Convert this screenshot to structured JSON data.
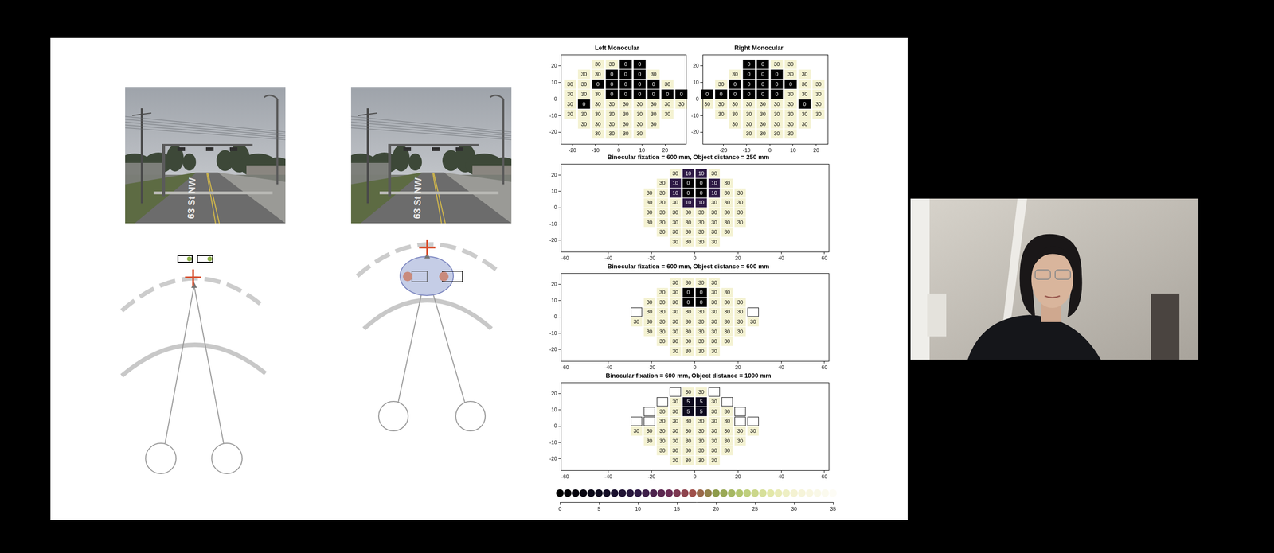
{
  "photos": [
    {
      "road_marking": "63 St NW"
    },
    {
      "road_marking": "63 St NW"
    }
  ],
  "chart_data": [
    {
      "type": "heatmap",
      "title": "Left Monocular",
      "data_labels": true,
      "xlim": [
        -25,
        29
      ],
      "ylim": [
        -27,
        27
      ],
      "xticks": [
        -20,
        -10,
        0,
        10,
        20
      ],
      "yticks": [
        -20,
        -10,
        0,
        10,
        20
      ],
      "cells": [
        {
          "y": 21,
          "x": [
            -9,
            -3,
            3,
            9
          ],
          "values": [
            30,
            30,
            0,
            0
          ]
        },
        {
          "y": 15,
          "x": [
            -15,
            -9,
            -3,
            3,
            9,
            15
          ],
          "values": [
            30,
            30,
            0,
            0,
            0,
            30
          ]
        },
        {
          "y": 9,
          "x": [
            -21,
            -15,
            -9,
            -3,
            3,
            9,
            15,
            21
          ],
          "values": [
            30,
            30,
            0,
            0,
            0,
            0,
            0,
            30
          ]
        },
        {
          "y": 3,
          "x": [
            -21,
            -15,
            -9,
            -3,
            3,
            9,
            15,
            21,
            27
          ],
          "values": [
            30,
            30,
            30,
            0,
            0,
            0,
            0,
            0,
            0
          ]
        },
        {
          "y": -3,
          "x": [
            -21,
            -15,
            -9,
            -3,
            3,
            9,
            15,
            21,
            27
          ],
          "values": [
            30,
            0,
            30,
            30,
            30,
            30,
            30,
            30,
            30
          ]
        },
        {
          "y": -9,
          "x": [
            -21,
            -15,
            -9,
            -3,
            3,
            9,
            15,
            21
          ],
          "values": [
            30,
            30,
            30,
            30,
            30,
            30,
            30,
            30
          ]
        },
        {
          "y": -15,
          "x": [
            -15,
            -9,
            -3,
            3,
            9,
            15
          ],
          "values": [
            30,
            30,
            30,
            30,
            30,
            30
          ]
        },
        {
          "y": -21,
          "x": [
            -9,
            -3,
            3,
            9
          ],
          "values": [
            30,
            30,
            30,
            30
          ]
        }
      ]
    },
    {
      "type": "heatmap",
      "title": "Right Monocular",
      "data_labels": true,
      "xlim": [
        -29,
        25
      ],
      "ylim": [
        -27,
        27
      ],
      "xticks": [
        -20,
        -10,
        0,
        10,
        20
      ],
      "yticks": [
        -20,
        -10,
        0,
        10,
        20
      ],
      "cells": [
        {
          "y": 21,
          "x": [
            -9,
            -3,
            3,
            9
          ],
          "values": [
            0,
            0,
            30,
            30
          ]
        },
        {
          "y": 15,
          "x": [
            -15,
            -9,
            -3,
            3,
            9,
            15
          ],
          "values": [
            30,
            0,
            0,
            0,
            30,
            30
          ]
        },
        {
          "y": 9,
          "x": [
            -21,
            -15,
            -9,
            -3,
            3,
            9,
            15,
            21
          ],
          "values": [
            30,
            0,
            0,
            0,
            0,
            0,
            30,
            30
          ]
        },
        {
          "y": 3,
          "x": [
            -27,
            -21,
            -15,
            -9,
            -3,
            3,
            9,
            15,
            21
          ],
          "values": [
            0,
            0,
            0,
            0,
            0,
            0,
            30,
            30,
            30
          ]
        },
        {
          "y": -3,
          "x": [
            -27,
            -21,
            -15,
            -9,
            -3,
            3,
            9,
            15,
            21
          ],
          "values": [
            30,
            30,
            30,
            30,
            30,
            30,
            30,
            0,
            30
          ]
        },
        {
          "y": -9,
          "x": [
            -21,
            -15,
            -9,
            -3,
            3,
            9,
            15,
            21
          ],
          "values": [
            30,
            30,
            30,
            30,
            30,
            30,
            30,
            30
          ]
        },
        {
          "y": -15,
          "x": [
            -15,
            -9,
            -3,
            3,
            9,
            15
          ],
          "values": [
            30,
            30,
            30,
            30,
            30,
            30
          ]
        },
        {
          "y": -21,
          "x": [
            -9,
            -3,
            3,
            9
          ],
          "values": [
            30,
            30,
            30,
            30
          ]
        }
      ]
    },
    {
      "type": "heatmap",
      "title": "Binocular fixation = 600 mm, Object distance = 250 mm",
      "data_labels": true,
      "xlim": [
        -62,
        62
      ],
      "ylim": [
        -27,
        27
      ],
      "xticks": [
        -60,
        -40,
        -20,
        0,
        20,
        40,
        60
      ],
      "yticks": [
        -20,
        -10,
        0,
        10,
        20
      ],
      "cells": [
        {
          "y": 21,
          "x": [
            -9,
            -3,
            3,
            9
          ],
          "values": [
            30,
            10,
            10,
            30
          ]
        },
        {
          "y": 15,
          "x": [
            -15,
            -9,
            -3,
            3,
            9,
            15
          ],
          "values": [
            30,
            10,
            0,
            0,
            10,
            30
          ]
        },
        {
          "y": 9,
          "x": [
            -21,
            -15,
            -9,
            -3,
            3,
            9,
            15,
            21
          ],
          "values": [
            30,
            30,
            10,
            0,
            0,
            10,
            30,
            30
          ]
        },
        {
          "y": 3,
          "x": [
            -21,
            -15,
            -9,
            -3,
            3,
            9,
            15,
            21
          ],
          "values": [
            30,
            30,
            30,
            10,
            10,
            30,
            30,
            30
          ]
        },
        {
          "y": -3,
          "x": [
            -21,
            -15,
            -9,
            -3,
            3,
            9,
            15,
            21
          ],
          "values": [
            30,
            30,
            30,
            30,
            30,
            30,
            30,
            30
          ]
        },
        {
          "y": -9,
          "x": [
            -21,
            -15,
            -9,
            -3,
            3,
            9,
            15,
            21
          ],
          "values": [
            30,
            30,
            30,
            30,
            30,
            30,
            30,
            30
          ]
        },
        {
          "y": -15,
          "x": [
            -15,
            -9,
            -3,
            3,
            9,
            15
          ],
          "values": [
            30,
            30,
            30,
            30,
            30,
            30
          ]
        },
        {
          "y": -21,
          "x": [
            -9,
            -3,
            3,
            9
          ],
          "values": [
            30,
            30,
            30,
            30
          ]
        }
      ]
    },
    {
      "type": "heatmap",
      "title": "Binocular fixation = 600 mm, Object distance = 600 mm",
      "data_labels": true,
      "xlim": [
        -62,
        62
      ],
      "ylim": [
        -27,
        27
      ],
      "xticks": [
        -60,
        -40,
        -20,
        0,
        20,
        40,
        60
      ],
      "yticks": [
        -20,
        -10,
        0,
        10,
        20
      ],
      "cells": [
        {
          "y": 21,
          "x": [
            -9,
            -3,
            3,
            9
          ],
          "values": [
            30,
            30,
            30,
            30
          ]
        },
        {
          "y": 15,
          "x": [
            -15,
            -9,
            -3,
            3,
            9,
            15
          ],
          "values": [
            30,
            30,
            0,
            0,
            30,
            30
          ]
        },
        {
          "y": 9,
          "x": [
            -21,
            -15,
            -9,
            -3,
            3,
            9,
            15,
            21
          ],
          "values": [
            30,
            30,
            30,
            0,
            0,
            30,
            30,
            30
          ]
        },
        {
          "y": 3,
          "x": [
            -27,
            -21,
            -15,
            -9,
            -3,
            3,
            9,
            15,
            21,
            27
          ],
          "values": [
            null,
            30,
            30,
            30,
            30,
            30,
            30,
            30,
            30,
            null
          ]
        },
        {
          "y": -3,
          "x": [
            -27,
            -21,
            -15,
            -9,
            -3,
            3,
            9,
            15,
            21,
            27
          ],
          "values": [
            30,
            30,
            30,
            30,
            30,
            30,
            30,
            30,
            30,
            30
          ]
        },
        {
          "y": -9,
          "x": [
            -21,
            -15,
            -9,
            -3,
            3,
            9,
            15,
            21
          ],
          "values": [
            30,
            30,
            30,
            30,
            30,
            30,
            30,
            30
          ]
        },
        {
          "y": -15,
          "x": [
            -15,
            -9,
            -3,
            3,
            9,
            15
          ],
          "values": [
            30,
            30,
            30,
            30,
            30,
            30
          ]
        },
        {
          "y": -21,
          "x": [
            -9,
            -3,
            3,
            9
          ],
          "values": [
            30,
            30,
            30,
            30
          ]
        }
      ]
    },
    {
      "type": "heatmap",
      "title": "Binocular fixation = 600 mm, Object distance = 1000 mm",
      "data_labels": true,
      "xlim": [
        -62,
        62
      ],
      "ylim": [
        -27,
        27
      ],
      "xticks": [
        -60,
        -40,
        -20,
        0,
        20,
        40,
        60
      ],
      "yticks": [
        -20,
        -10,
        0,
        10,
        20
      ],
      "cells": [
        {
          "y": 21,
          "x": [
            -9,
            -3,
            3,
            9
          ],
          "values": [
            null,
            30,
            30,
            null
          ]
        },
        {
          "y": 15,
          "x": [
            -15,
            -9,
            -3,
            3,
            9,
            15
          ],
          "values": [
            null,
            30,
            5,
            5,
            30,
            null
          ]
        },
        {
          "y": 9,
          "x": [
            -21,
            -15,
            -9,
            -3,
            3,
            9,
            15,
            21
          ],
          "values": [
            null,
            30,
            30,
            5,
            5,
            30,
            30,
            null
          ]
        },
        {
          "y": 3,
          "x": [
            -27,
            -21,
            -15,
            -9,
            -3,
            3,
            9,
            15,
            21,
            27
          ],
          "values": [
            null,
            null,
            30,
            30,
            30,
            30,
            30,
            30,
            null,
            null
          ]
        },
        {
          "y": -3,
          "x": [
            -27,
            -21,
            -15,
            -9,
            -3,
            3,
            9,
            15,
            21,
            27
          ],
          "values": [
            30,
            30,
            30,
            30,
            30,
            30,
            30,
            30,
            30,
            30
          ]
        },
        {
          "y": -9,
          "x": [
            -21,
            -15,
            -9,
            -3,
            3,
            9,
            15,
            21
          ],
          "values": [
            30,
            30,
            30,
            30,
            30,
            30,
            30,
            30
          ]
        },
        {
          "y": -15,
          "x": [
            -15,
            -9,
            -3,
            3,
            9,
            15
          ],
          "values": [
            30,
            30,
            30,
            30,
            30,
            30
          ]
        },
        {
          "y": -21,
          "x": [
            -9,
            -3,
            3,
            9
          ],
          "values": [
            30,
            30,
            30,
            30
          ]
        }
      ]
    }
  ],
  "colorbar": {
    "range": [
      0,
      35
    ],
    "ticks": [
      0,
      5,
      10,
      15,
      20,
      25,
      30,
      35
    ]
  }
}
